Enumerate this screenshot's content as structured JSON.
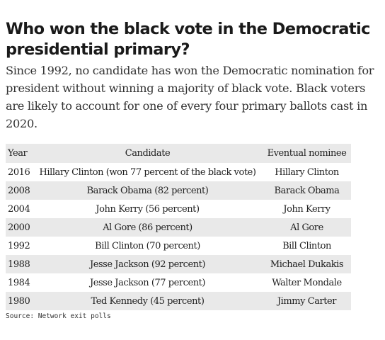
{
  "header": {
    "title": "Who won the black vote in the Democratic presidential primary?",
    "dek": "Since 1992, no candidate has won the Democratic nomination for president without winning a majority of black vote. Black voters are likely to account for one of every four primary ballots cast in 2020."
  },
  "table": {
    "columns": [
      "Year",
      "Candidate",
      "Eventual nominee"
    ],
    "rows": [
      {
        "year": "2016",
        "candidate": "Hillary Clinton (won 77 percent of the black vote)",
        "nominee": "Hillary Clinton"
      },
      {
        "year": "2008",
        "candidate": "Barack Obama (82 percent)",
        "nominee": "Barack Obama"
      },
      {
        "year": "2004",
        "candidate": "John Kerry (56 percent)",
        "nominee": "John Kerry"
      },
      {
        "year": "2000",
        "candidate": "Al Gore (86 percent)",
        "nominee": "Al Gore"
      },
      {
        "year": "1992",
        "candidate": "Bill Clinton (70 percent)",
        "nominee": "Bill Clinton"
      },
      {
        "year": "1988",
        "candidate": "Jesse Jackson (92 percent)",
        "nominee": "Michael Dukakis"
      },
      {
        "year": "1984",
        "candidate": "Jesse Jackson (77 percent)",
        "nominee": "Walter Mondale"
      },
      {
        "year": "1980",
        "candidate": "Ted Kennedy (45 percent)",
        "nominee": "Jimmy Carter"
      }
    ]
  },
  "source": "Source: Network exit polls"
}
